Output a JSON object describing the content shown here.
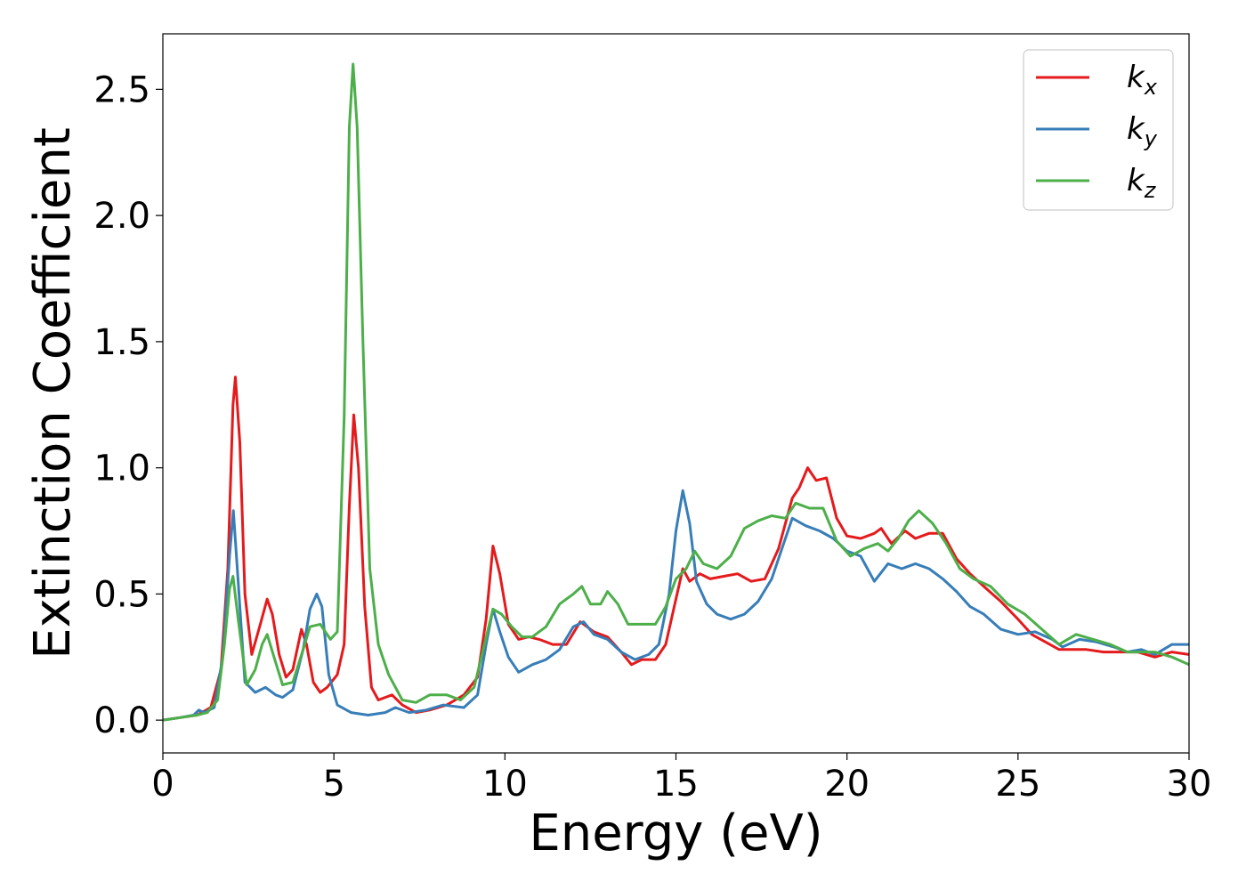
{
  "chart_data": {
    "type": "line",
    "title": "",
    "xlabel": "Energy (eV)",
    "ylabel": "Extinction Coefficient",
    "xlim": [
      0,
      30
    ],
    "ylim": [
      -0.13,
      2.72
    ],
    "xticks": [
      0,
      5,
      10,
      15,
      20,
      25,
      30
    ],
    "yticks": [
      0.0,
      0.5,
      1.0,
      1.5,
      2.0,
      2.5
    ],
    "grid": false,
    "legend_position": "top-right",
    "series": [
      {
        "name": "k",
        "subscript": "x",
        "color": "#e41a1c",
        "points": [
          [
            0,
            0
          ],
          [
            0.5,
            0.01
          ],
          [
            1,
            0.02
          ],
          [
            1.4,
            0.05
          ],
          [
            1.7,
            0.2
          ],
          [
            1.9,
            0.6
          ],
          [
            2.05,
            1.25
          ],
          [
            2.12,
            1.36
          ],
          [
            2.25,
            1.1
          ],
          [
            2.4,
            0.5
          ],
          [
            2.6,
            0.26
          ],
          [
            2.85,
            0.38
          ],
          [
            3.05,
            0.48
          ],
          [
            3.2,
            0.42
          ],
          [
            3.4,
            0.26
          ],
          [
            3.6,
            0.17
          ],
          [
            3.8,
            0.2
          ],
          [
            4.05,
            0.36
          ],
          [
            4.2,
            0.3
          ],
          [
            4.4,
            0.15
          ],
          [
            4.6,
            0.11
          ],
          [
            4.8,
            0.13
          ],
          [
            5.1,
            0.18
          ],
          [
            5.3,
            0.3
          ],
          [
            5.45,
            0.85
          ],
          [
            5.58,
            1.21
          ],
          [
            5.72,
            1.0
          ],
          [
            5.9,
            0.45
          ],
          [
            6.1,
            0.13
          ],
          [
            6.3,
            0.08
          ],
          [
            6.5,
            0.09
          ],
          [
            6.7,
            0.1
          ],
          [
            7,
            0.06
          ],
          [
            7.4,
            0.03
          ],
          [
            7.8,
            0.04
          ],
          [
            8.3,
            0.06
          ],
          [
            8.8,
            0.1
          ],
          [
            9.2,
            0.17
          ],
          [
            9.45,
            0.4
          ],
          [
            9.65,
            0.69
          ],
          [
            9.85,
            0.58
          ],
          [
            10.1,
            0.38
          ],
          [
            10.4,
            0.32
          ],
          [
            10.7,
            0.33
          ],
          [
            11,
            0.32
          ],
          [
            11.4,
            0.3
          ],
          [
            11.8,
            0.3
          ],
          [
            12.2,
            0.39
          ],
          [
            12.6,
            0.35
          ],
          [
            13,
            0.33
          ],
          [
            13.4,
            0.27
          ],
          [
            13.7,
            0.22
          ],
          [
            14,
            0.24
          ],
          [
            14.4,
            0.24
          ],
          [
            14.7,
            0.3
          ],
          [
            15,
            0.48
          ],
          [
            15.2,
            0.6
          ],
          [
            15.4,
            0.55
          ],
          [
            15.7,
            0.58
          ],
          [
            16,
            0.56
          ],
          [
            16.4,
            0.57
          ],
          [
            16.8,
            0.58
          ],
          [
            17.2,
            0.55
          ],
          [
            17.6,
            0.56
          ],
          [
            18,
            0.68
          ],
          [
            18.4,
            0.88
          ],
          [
            18.6,
            0.92
          ],
          [
            18.85,
            1.0
          ],
          [
            19.1,
            0.95
          ],
          [
            19.4,
            0.96
          ],
          [
            19.7,
            0.8
          ],
          [
            20,
            0.73
          ],
          [
            20.4,
            0.72
          ],
          [
            20.8,
            0.74
          ],
          [
            21,
            0.76
          ],
          [
            21.3,
            0.7
          ],
          [
            21.7,
            0.75
          ],
          [
            22,
            0.72
          ],
          [
            22.4,
            0.74
          ],
          [
            22.8,
            0.74
          ],
          [
            23.2,
            0.64
          ],
          [
            23.6,
            0.58
          ],
          [
            24,
            0.53
          ],
          [
            24.5,
            0.47
          ],
          [
            25,
            0.4
          ],
          [
            25.4,
            0.34
          ],
          [
            25.8,
            0.31
          ],
          [
            26.2,
            0.28
          ],
          [
            26.6,
            0.28
          ],
          [
            27,
            0.28
          ],
          [
            27.5,
            0.27
          ],
          [
            28,
            0.27
          ],
          [
            28.5,
            0.27
          ],
          [
            29,
            0.25
          ],
          [
            29.5,
            0.27
          ],
          [
            30,
            0.26
          ]
        ]
      },
      {
        "name": "k",
        "subscript": "y",
        "color": "#377eb8",
        "points": [
          [
            0,
            0
          ],
          [
            0.5,
            0.01
          ],
          [
            0.9,
            0.02
          ],
          [
            1.05,
            0.04
          ],
          [
            1.2,
            0.03
          ],
          [
            1.5,
            0.05
          ],
          [
            1.75,
            0.25
          ],
          [
            1.95,
            0.65
          ],
          [
            2.06,
            0.83
          ],
          [
            2.2,
            0.55
          ],
          [
            2.4,
            0.15
          ],
          [
            2.7,
            0.11
          ],
          [
            3.0,
            0.13
          ],
          [
            3.3,
            0.1
          ],
          [
            3.5,
            0.09
          ],
          [
            3.8,
            0.12
          ],
          [
            4.1,
            0.28
          ],
          [
            4.3,
            0.44
          ],
          [
            4.5,
            0.5
          ],
          [
            4.65,
            0.45
          ],
          [
            4.85,
            0.18
          ],
          [
            5.1,
            0.06
          ],
          [
            5.5,
            0.03
          ],
          [
            6.0,
            0.02
          ],
          [
            6.5,
            0.03
          ],
          [
            6.8,
            0.05
          ],
          [
            7.2,
            0.03
          ],
          [
            7.7,
            0.04
          ],
          [
            8.2,
            0.06
          ],
          [
            8.8,
            0.05
          ],
          [
            9.2,
            0.1
          ],
          [
            9.45,
            0.3
          ],
          [
            9.65,
            0.44
          ],
          [
            9.85,
            0.35
          ],
          [
            10.1,
            0.25
          ],
          [
            10.4,
            0.19
          ],
          [
            10.8,
            0.22
          ],
          [
            11.2,
            0.24
          ],
          [
            11.6,
            0.28
          ],
          [
            12.0,
            0.37
          ],
          [
            12.3,
            0.39
          ],
          [
            12.6,
            0.34
          ],
          [
            13,
            0.32
          ],
          [
            13.4,
            0.27
          ],
          [
            13.8,
            0.24
          ],
          [
            14.2,
            0.26
          ],
          [
            14.5,
            0.3
          ],
          [
            14.8,
            0.5
          ],
          [
            15.0,
            0.75
          ],
          [
            15.2,
            0.91
          ],
          [
            15.4,
            0.78
          ],
          [
            15.6,
            0.55
          ],
          [
            15.9,
            0.46
          ],
          [
            16.2,
            0.42
          ],
          [
            16.6,
            0.4
          ],
          [
            17,
            0.42
          ],
          [
            17.4,
            0.47
          ],
          [
            17.8,
            0.56
          ],
          [
            18.1,
            0.68
          ],
          [
            18.4,
            0.8
          ],
          [
            18.8,
            0.77
          ],
          [
            19.2,
            0.75
          ],
          [
            19.6,
            0.72
          ],
          [
            20,
            0.67
          ],
          [
            20.4,
            0.65
          ],
          [
            20.8,
            0.55
          ],
          [
            21.2,
            0.62
          ],
          [
            21.6,
            0.6
          ],
          [
            22,
            0.62
          ],
          [
            22.4,
            0.6
          ],
          [
            22.8,
            0.56
          ],
          [
            23.2,
            0.51
          ],
          [
            23.6,
            0.45
          ],
          [
            24,
            0.42
          ],
          [
            24.5,
            0.36
          ],
          [
            25,
            0.34
          ],
          [
            25.5,
            0.35
          ],
          [
            26,
            0.32
          ],
          [
            26.3,
            0.29
          ],
          [
            26.8,
            0.32
          ],
          [
            27.3,
            0.31
          ],
          [
            27.8,
            0.29
          ],
          [
            28.2,
            0.27
          ],
          [
            28.6,
            0.28
          ],
          [
            29,
            0.26
          ],
          [
            29.5,
            0.3
          ],
          [
            30,
            0.3
          ]
        ]
      },
      {
        "name": "k",
        "subscript": "z",
        "color": "#4daf4a",
        "points": [
          [
            0,
            0
          ],
          [
            0.5,
            0.01
          ],
          [
            1.0,
            0.02
          ],
          [
            1.3,
            0.03
          ],
          [
            1.6,
            0.08
          ],
          [
            1.8,
            0.3
          ],
          [
            1.95,
            0.52
          ],
          [
            2.05,
            0.57
          ],
          [
            2.2,
            0.4
          ],
          [
            2.45,
            0.14
          ],
          [
            2.7,
            0.2
          ],
          [
            2.9,
            0.3
          ],
          [
            3.05,
            0.34
          ],
          [
            3.25,
            0.25
          ],
          [
            3.5,
            0.14
          ],
          [
            3.8,
            0.15
          ],
          [
            4.1,
            0.28
          ],
          [
            4.3,
            0.37
          ],
          [
            4.6,
            0.38
          ],
          [
            4.9,
            0.32
          ],
          [
            5.1,
            0.35
          ],
          [
            5.3,
            1.2
          ],
          [
            5.45,
            2.35
          ],
          [
            5.56,
            2.6
          ],
          [
            5.68,
            2.35
          ],
          [
            5.85,
            1.5
          ],
          [
            6.05,
            0.6
          ],
          [
            6.3,
            0.3
          ],
          [
            6.6,
            0.18
          ],
          [
            7.0,
            0.08
          ],
          [
            7.4,
            0.07
          ],
          [
            7.8,
            0.1
          ],
          [
            8.3,
            0.1
          ],
          [
            8.7,
            0.08
          ],
          [
            9.1,
            0.13
          ],
          [
            9.4,
            0.3
          ],
          [
            9.65,
            0.44
          ],
          [
            9.9,
            0.42
          ],
          [
            10.2,
            0.37
          ],
          [
            10.5,
            0.33
          ],
          [
            10.8,
            0.33
          ],
          [
            11.2,
            0.37
          ],
          [
            11.6,
            0.46
          ],
          [
            12.0,
            0.5
          ],
          [
            12.25,
            0.53
          ],
          [
            12.5,
            0.46
          ],
          [
            12.8,
            0.46
          ],
          [
            13.0,
            0.51
          ],
          [
            13.3,
            0.46
          ],
          [
            13.6,
            0.38
          ],
          [
            14.0,
            0.38
          ],
          [
            14.4,
            0.38
          ],
          [
            14.7,
            0.45
          ],
          [
            15.0,
            0.56
          ],
          [
            15.3,
            0.6
          ],
          [
            15.55,
            0.67
          ],
          [
            15.8,
            0.62
          ],
          [
            16.2,
            0.6
          ],
          [
            16.6,
            0.65
          ],
          [
            17,
            0.76
          ],
          [
            17.4,
            0.79
          ],
          [
            17.8,
            0.81
          ],
          [
            18.2,
            0.8
          ],
          [
            18.5,
            0.86
          ],
          [
            18.9,
            0.84
          ],
          [
            19.3,
            0.84
          ],
          [
            19.7,
            0.71
          ],
          [
            20.1,
            0.65
          ],
          [
            20.5,
            0.68
          ],
          [
            20.9,
            0.7
          ],
          [
            21.2,
            0.67
          ],
          [
            21.5,
            0.72
          ],
          [
            21.8,
            0.79
          ],
          [
            22.1,
            0.83
          ],
          [
            22.5,
            0.78
          ],
          [
            22.9,
            0.7
          ],
          [
            23.3,
            0.6
          ],
          [
            23.7,
            0.56
          ],
          [
            24.2,
            0.53
          ],
          [
            24.7,
            0.46
          ],
          [
            25.2,
            0.42
          ],
          [
            25.7,
            0.36
          ],
          [
            26.2,
            0.3
          ],
          [
            26.7,
            0.34
          ],
          [
            27.2,
            0.32
          ],
          [
            27.7,
            0.3
          ],
          [
            28.2,
            0.27
          ],
          [
            28.6,
            0.27
          ],
          [
            29.0,
            0.27
          ],
          [
            29.5,
            0.25
          ],
          [
            30,
            0.22
          ]
        ]
      }
    ]
  }
}
